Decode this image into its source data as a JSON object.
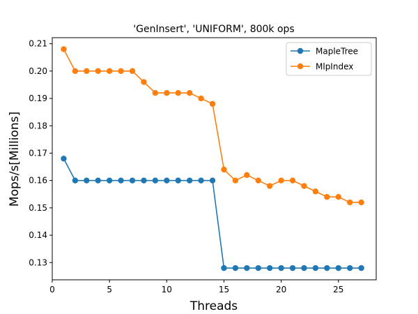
{
  "chart_data": {
    "type": "line",
    "title": "'GenInsert', 'UNIFORM', 800k ops",
    "xlabel": "Threads",
    "ylabel": "Mops/s[Millions]",
    "xlim": [
      0,
      28.3
    ],
    "ylim": [
      0.1237,
      0.2122
    ],
    "xticks": [
      0,
      5,
      10,
      15,
      20,
      25
    ],
    "yticks": [
      0.13,
      0.14,
      0.15,
      0.16,
      0.17,
      0.18,
      0.19,
      0.2,
      0.21
    ],
    "grid": false,
    "legend_position": "top-right",
    "x": [
      1,
      2,
      3,
      4,
      5,
      6,
      7,
      8,
      9,
      10,
      11,
      12,
      13,
      14,
      15,
      16,
      17,
      18,
      19,
      20,
      21,
      22,
      23,
      24,
      25,
      26,
      27
    ],
    "series": [
      {
        "name": "MapleTree",
        "color": "#1f77b4",
        "values": [
          0.168,
          0.16,
          0.16,
          0.16,
          0.16,
          0.16,
          0.16,
          0.16,
          0.16,
          0.16,
          0.16,
          0.16,
          0.16,
          0.16,
          0.128,
          0.128,
          0.128,
          0.128,
          0.128,
          0.128,
          0.128,
          0.128,
          0.128,
          0.128,
          0.128,
          0.128,
          0.128
        ]
      },
      {
        "name": "MlpIndex",
        "color": "#ff7f0e",
        "values": [
          0.208,
          0.2,
          0.2,
          0.2,
          0.2,
          0.2,
          0.2,
          0.196,
          0.192,
          0.192,
          0.192,
          0.192,
          0.19,
          0.188,
          0.164,
          0.16,
          0.162,
          0.16,
          0.158,
          0.16,
          0.16,
          0.158,
          0.156,
          0.154,
          0.154,
          0.152,
          0.152
        ]
      }
    ]
  }
}
